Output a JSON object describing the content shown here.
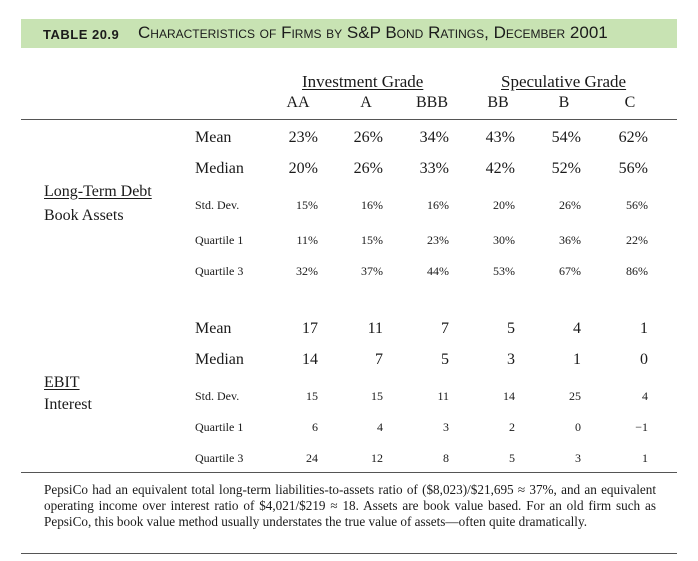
{
  "header": {
    "table_number": "TABLE 20.9",
    "title": "Characteristics of Firms by S&P Bond Ratings, December 2001"
  },
  "groups": {
    "investment": "Investment Grade",
    "speculative": "Speculative Grade"
  },
  "ratings": [
    "AA",
    "A",
    "BBB",
    "BB",
    "B",
    "C"
  ],
  "debt_section": {
    "label_line1": "Long-Term Debt",
    "label_line2": "Book Assets",
    "rows": [
      {
        "stat": "Mean",
        "values": [
          "23%",
          "26%",
          "34%",
          "43%",
          "54%",
          "62%"
        ]
      },
      {
        "stat": "Median",
        "values": [
          "20%",
          "26%",
          "33%",
          "42%",
          "52%",
          "56%"
        ]
      },
      {
        "stat": "Std. Dev.",
        "values": [
          "15%",
          "16%",
          "16%",
          "20%",
          "26%",
          "56%"
        ]
      },
      {
        "stat": "Quartile 1",
        "values": [
          "11%",
          "15%",
          "23%",
          "30%",
          "36%",
          "22%"
        ]
      },
      {
        "stat": "Quartile 3",
        "values": [
          "32%",
          "37%",
          "44%",
          "53%",
          "67%",
          "86%"
        ]
      }
    ]
  },
  "ebit_section": {
    "label_line1": "EBIT",
    "label_line2": "Interest",
    "rows": [
      {
        "stat": "Mean",
        "values": [
          "17",
          "11",
          "7",
          "5",
          "4",
          "1"
        ]
      },
      {
        "stat": "Median",
        "values": [
          "14",
          "7",
          "5",
          "3",
          "1",
          "0"
        ]
      },
      {
        "stat": "Std. Dev.",
        "values": [
          "15",
          "15",
          "11",
          "14",
          "25",
          "4"
        ]
      },
      {
        "stat": "Quartile 1",
        "values": [
          "6",
          "4",
          "3",
          "2",
          "0",
          "−1"
        ]
      },
      {
        "stat": "Quartile 3",
        "values": [
          "24",
          "12",
          "8",
          "5",
          "3",
          "1"
        ]
      }
    ]
  },
  "footnote": "PepsiCo had an equivalent total long-term liabilities-to-assets ratio of ($8,023)/$21,695 ≈ 37%, and an equivalent operating income over interest ratio of $4,021/$219 ≈ 18. Assets are book value based. For an old firm such as PepsiCo, this book value method usually understates the true value of assets—often quite dramatically."
}
